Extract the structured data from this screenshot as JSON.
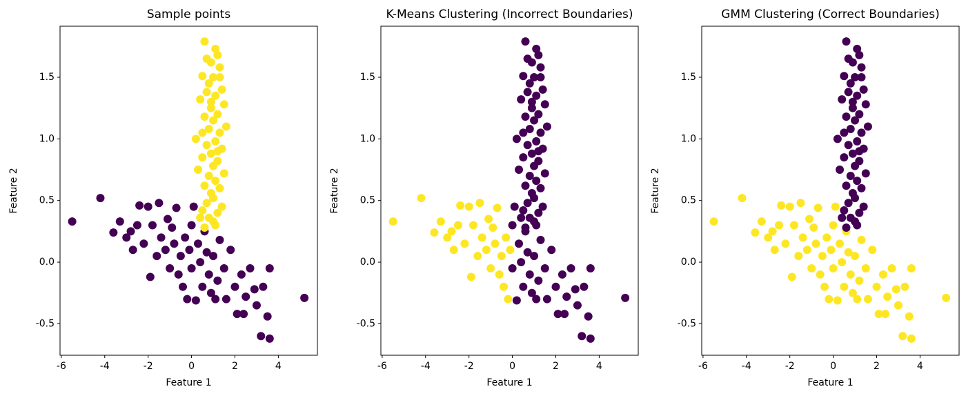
{
  "chart_data": [
    {
      "type": "scatter",
      "title": "Sample points",
      "xlabel": "Feature 1",
      "ylabel": "Feature 2",
      "xlim": [
        -6.06,
        5.8
      ],
      "ylim": [
        -0.755,
        1.914
      ],
      "xticks": [
        -6,
        -4,
        -2,
        0,
        2,
        4
      ],
      "yticks": [
        -0.5,
        {
          "value": 0,
          "label": "0.0"
        },
        0.5,
        {
          "value": 1,
          "label": "1.0"
        },
        1.5
      ],
      "series": [
        {
          "color": "#440154",
          "x": [
            -5.5,
            -4.2,
            -3.6,
            -3.3,
            -3.0,
            -2.7,
            -2.5,
            -2.4,
            -2.2,
            -2.0,
            -1.9,
            -1.8,
            -1.6,
            -1.5,
            -1.4,
            -1.2,
            -1.0,
            -0.9,
            -0.8,
            -0.7,
            -0.6,
            -0.5,
            -0.3,
            -0.2,
            -0.1,
            0.0,
            0.1,
            0.2,
            0.3,
            0.4,
            0.5,
            0.6,
            0.7,
            0.8,
            0.9,
            1.0,
            1.2,
            1.3,
            1.5,
            1.6,
            1.8,
            2.0,
            2.1,
            2.3,
            2.5,
            2.7,
            2.9,
            3.0,
            3.2,
            3.3,
            3.5,
            3.6,
            3.6,
            5.2,
            -1.1,
            -2.8,
            -0.4,
            1.1,
            2.4,
            0.0
          ],
          "y": [
            0.33,
            0.52,
            0.24,
            0.33,
            0.2,
            0.1,
            0.3,
            0.46,
            0.15,
            0.45,
            -0.12,
            0.3,
            0.05,
            0.48,
            0.2,
            0.1,
            -0.05,
            0.28,
            0.15,
            0.44,
            -0.1,
            0.05,
            0.2,
            -0.3,
            0.1,
            -0.05,
            0.45,
            -0.31,
            0.15,
            0.0,
            -0.2,
            0.25,
            0.08,
            -0.1,
            -0.25,
            0.05,
            -0.15,
            0.18,
            -0.05,
            -0.3,
            0.1,
            -0.2,
            -0.42,
            -0.1,
            -0.28,
            -0.05,
            -0.22,
            -0.35,
            -0.6,
            -0.2,
            -0.44,
            -0.62,
            -0.05,
            -0.29,
            0.35,
            0.25,
            -0.2,
            -0.3,
            -0.42,
            0.3
          ]
        },
        {
          "color": "#fde725",
          "x": [
            0.6,
            1.1,
            1.2,
            0.9,
            1.3,
            0.5,
            1.0,
            0.8,
            1.4,
            0.7,
            1.1,
            0.4,
            1.5,
            0.9,
            1.2,
            0.6,
            1.0,
            1.6,
            0.8,
            1.3,
            0.2,
            1.1,
            0.7,
            1.4,
            0.9,
            0.5,
            1.2,
            1.0,
            0.3,
            1.5,
            0.8,
            1.1,
            0.6,
            1.3,
            0.9,
            1.0,
            0.7,
            1.4,
            0.5,
            1.2,
            0.8,
            1.0,
            0.6,
            1.1,
            0.4,
            1.3,
            0.7,
            1.2,
            0.5,
            0.9
          ],
          "y": [
            1.79,
            1.73,
            1.68,
            1.62,
            1.58,
            1.51,
            1.5,
            1.45,
            1.4,
            1.38,
            1.35,
            1.32,
            1.28,
            1.25,
            1.2,
            1.18,
            1.15,
            1.1,
            1.08,
            1.05,
            1.0,
            0.98,
            0.95,
            0.92,
            0.88,
            0.85,
            0.82,
            0.78,
            0.75,
            0.72,
            0.7,
            0.66,
            0.62,
            0.6,
            0.56,
            0.52,
            0.48,
            0.45,
            0.42,
            0.4,
            0.36,
            0.33,
            0.28,
            0.3,
            0.36,
            1.5,
            1.65,
            0.9,
            1.05,
            1.3
          ]
        }
      ]
    },
    {
      "type": "scatter",
      "title": "K-Means Clustering (Incorrect Boundaries)",
      "xlabel": "Feature 1",
      "ylabel": "Feature 2",
      "xlim": [
        -6.06,
        5.8
      ],
      "ylim": [
        -0.755,
        1.914
      ],
      "xticks": [
        -6,
        -4,
        -2,
        0,
        2,
        4
      ],
      "yticks": [
        -0.5,
        {
          "value": 0,
          "label": "0.0"
        },
        0.5,
        {
          "value": 1,
          "label": "1.0"
        },
        1.5
      ],
      "series": [
        {
          "color": "#440154",
          "x": [
            0.6,
            1.1,
            1.2,
            0.9,
            1.3,
            0.5,
            1.0,
            0.8,
            1.4,
            0.7,
            1.1,
            0.4,
            1.5,
            0.9,
            1.2,
            0.6,
            1.0,
            1.6,
            0.8,
            1.3,
            0.2,
            1.1,
            0.7,
            1.4,
            0.9,
            0.5,
            1.2,
            1.0,
            0.3,
            1.5,
            0.8,
            1.1,
            0.6,
            1.3,
            0.9,
            1.0,
            0.7,
            1.4,
            0.5,
            1.2,
            0.8,
            1.0,
            0.6,
            1.1,
            0.4,
            1.3,
            0.7,
            1.2,
            0.5,
            0.9,
            0.0,
            0.1,
            0.2,
            0.3,
            0.4,
            0.5,
            0.6,
            0.7,
            0.8,
            0.9,
            1.0,
            1.2,
            1.3,
            1.5,
            1.6,
            1.8,
            2.0,
            2.1,
            2.3,
            2.5,
            2.7,
            2.9,
            3.0,
            3.2,
            3.3,
            3.5,
            3.6,
            3.6,
            5.2,
            1.1,
            2.4,
            0.0
          ],
          "y": [
            1.79,
            1.73,
            1.68,
            1.62,
            1.58,
            1.51,
            1.5,
            1.45,
            1.4,
            1.38,
            1.35,
            1.32,
            1.28,
            1.25,
            1.2,
            1.18,
            1.15,
            1.1,
            1.08,
            1.05,
            1.0,
            0.98,
            0.95,
            0.92,
            0.88,
            0.85,
            0.82,
            0.78,
            0.75,
            0.72,
            0.7,
            0.66,
            0.62,
            0.6,
            0.56,
            0.52,
            0.48,
            0.45,
            0.42,
            0.4,
            0.36,
            0.33,
            0.28,
            0.3,
            0.36,
            1.5,
            1.65,
            0.9,
            1.05,
            1.3,
            -0.05,
            0.45,
            -0.31,
            0.15,
            0.0,
            -0.2,
            0.25,
            0.08,
            -0.1,
            -0.25,
            0.05,
            -0.15,
            0.18,
            -0.05,
            -0.3,
            0.1,
            -0.2,
            -0.42,
            -0.1,
            -0.28,
            -0.05,
            -0.22,
            -0.35,
            -0.6,
            -0.2,
            -0.44,
            -0.62,
            -0.05,
            -0.29,
            -0.3,
            -0.42,
            0.3
          ]
        },
        {
          "color": "#fde725",
          "x": [
            -5.5,
            -4.2,
            -3.6,
            -3.3,
            -3.0,
            -2.7,
            -2.5,
            -2.4,
            -2.2,
            -2.0,
            -1.9,
            -1.8,
            -1.6,
            -1.5,
            -1.4,
            -1.2,
            -1.0,
            -0.9,
            -0.8,
            -0.7,
            -0.6,
            -0.5,
            -0.3,
            -0.2,
            -0.1,
            -1.1,
            -2.8,
            -0.4
          ],
          "y": [
            0.33,
            0.52,
            0.24,
            0.33,
            0.2,
            0.1,
            0.3,
            0.46,
            0.15,
            0.45,
            -0.12,
            0.3,
            0.05,
            0.48,
            0.2,
            0.1,
            -0.05,
            0.28,
            0.15,
            0.44,
            -0.1,
            0.05,
            0.2,
            -0.3,
            0.1,
            0.35,
            0.25,
            -0.2
          ]
        }
      ]
    },
    {
      "type": "scatter",
      "title": "GMM Clustering (Correct Boundaries)",
      "xlabel": "Feature 1",
      "ylabel": "Feature 2",
      "xlim": [
        -6.06,
        5.8
      ],
      "ylim": [
        -0.755,
        1.914
      ],
      "xticks": [
        -6,
        -4,
        -2,
        0,
        2,
        4
      ],
      "yticks": [
        -0.5,
        {
          "value": 0,
          "label": "0.0"
        },
        0.5,
        {
          "value": 1,
          "label": "1.0"
        },
        1.5
      ],
      "series": [
        {
          "color": "#fde725",
          "x": [
            -5.5,
            -4.2,
            -3.6,
            -3.3,
            -3.0,
            -2.7,
            -2.5,
            -2.4,
            -2.2,
            -2.0,
            -1.9,
            -1.8,
            -1.6,
            -1.5,
            -1.4,
            -1.2,
            -1.0,
            -0.9,
            -0.8,
            -0.7,
            -0.6,
            -0.5,
            -0.3,
            -0.2,
            -0.1,
            0.0,
            0.1,
            0.2,
            0.3,
            0.4,
            0.5,
            0.6,
            0.7,
            0.8,
            0.9,
            1.0,
            1.2,
            1.3,
            1.5,
            1.6,
            1.8,
            2.0,
            2.1,
            2.3,
            2.5,
            2.7,
            2.9,
            3.0,
            3.2,
            3.3,
            3.5,
            3.6,
            3.6,
            5.2,
            -1.1,
            -2.8,
            -0.4,
            1.1,
            2.4,
            0.0
          ],
          "y": [
            0.33,
            0.52,
            0.24,
            0.33,
            0.2,
            0.1,
            0.3,
            0.46,
            0.15,
            0.45,
            -0.12,
            0.3,
            0.05,
            0.48,
            0.2,
            0.1,
            -0.05,
            0.28,
            0.15,
            0.44,
            -0.1,
            0.05,
            0.2,
            -0.3,
            0.1,
            -0.05,
            0.45,
            -0.31,
            0.15,
            0.0,
            -0.2,
            0.25,
            0.08,
            -0.1,
            -0.25,
            0.05,
            -0.15,
            0.18,
            -0.05,
            -0.3,
            0.1,
            -0.2,
            -0.42,
            -0.1,
            -0.28,
            -0.05,
            -0.22,
            -0.35,
            -0.6,
            -0.2,
            -0.44,
            -0.62,
            -0.05,
            -0.29,
            0.35,
            0.25,
            -0.2,
            -0.3,
            -0.42,
            0.3
          ]
        },
        {
          "color": "#440154",
          "x": [
            0.6,
            1.1,
            1.2,
            0.9,
            1.3,
            0.5,
            1.0,
            0.8,
            1.4,
            0.7,
            1.1,
            0.4,
            1.5,
            0.9,
            1.2,
            0.6,
            1.0,
            1.6,
            0.8,
            1.3,
            0.2,
            1.1,
            0.7,
            1.4,
            0.9,
            0.5,
            1.2,
            1.0,
            0.3,
            1.5,
            0.8,
            1.1,
            0.6,
            1.3,
            0.9,
            1.0,
            0.7,
            1.4,
            0.5,
            1.2,
            0.8,
            1.0,
            0.6,
            1.1,
            0.4,
            1.3,
            0.7,
            1.2,
            0.5,
            0.9
          ],
          "y": [
            1.79,
            1.73,
            1.68,
            1.62,
            1.58,
            1.51,
            1.5,
            1.45,
            1.4,
            1.38,
            1.35,
            1.32,
            1.28,
            1.25,
            1.2,
            1.18,
            1.15,
            1.1,
            1.08,
            1.05,
            1.0,
            0.98,
            0.95,
            0.92,
            0.88,
            0.85,
            0.82,
            0.78,
            0.75,
            0.72,
            0.7,
            0.66,
            0.62,
            0.6,
            0.56,
            0.52,
            0.48,
            0.45,
            0.42,
            0.4,
            0.36,
            0.33,
            0.28,
            0.3,
            0.36,
            1.5,
            1.65,
            0.9,
            1.05,
            1.3
          ]
        }
      ]
    }
  ]
}
